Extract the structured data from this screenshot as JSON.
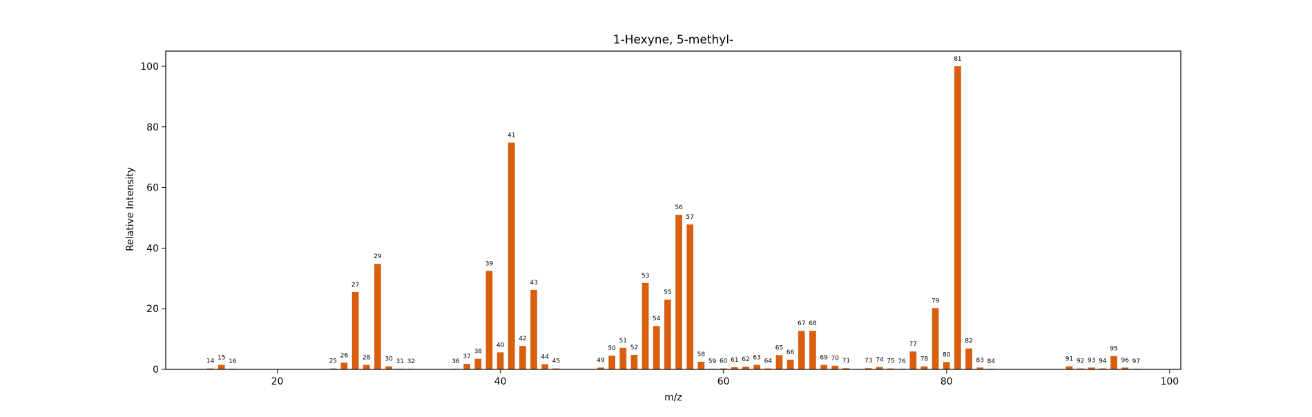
{
  "colors": {
    "bar": "#d95f0e",
    "axis": "#000000",
    "background": "#ffffff"
  },
  "chart_data": {
    "type": "bar",
    "title": "1-Hexyne, 5-methyl-",
    "xlabel": "m/z",
    "ylabel": "Relative Intensity",
    "xlim": [
      10,
      101
    ],
    "ylim": [
      0,
      105
    ],
    "xticks": [
      20,
      40,
      60,
      80,
      100
    ],
    "yticks": [
      0,
      20,
      40,
      60,
      80,
      100
    ],
    "grid": false,
    "legend": "none",
    "x": [
      14,
      15,
      16,
      25,
      26,
      27,
      28,
      29,
      30,
      31,
      32,
      36,
      37,
      38,
      39,
      40,
      41,
      42,
      43,
      44,
      45,
      49,
      50,
      51,
      52,
      53,
      54,
      55,
      56,
      57,
      58,
      59,
      60,
      61,
      62,
      63,
      64,
      65,
      66,
      67,
      68,
      69,
      70,
      71,
      73,
      74,
      75,
      76,
      77,
      78,
      79,
      80,
      81,
      82,
      83,
      84,
      91,
      92,
      93,
      94,
      95,
      96,
      97
    ],
    "values": [
      0.3,
      1.5,
      0.2,
      0.3,
      2.2,
      25.5,
      1.5,
      34.8,
      1.0,
      0.2,
      0.2,
      0.2,
      1.8,
      3.5,
      32.5,
      5.6,
      74.8,
      7.7,
      26.2,
      1.7,
      0.3,
      0.6,
      4.5,
      7.1,
      4.8,
      28.5,
      14.3,
      23.0,
      51.0,
      47.8,
      2.5,
      0.2,
      0.3,
      0.7,
      0.9,
      1.5,
      0.3,
      4.7,
      3.2,
      12.7,
      12.7,
      1.5,
      1.2,
      0.4,
      0.4,
      0.8,
      0.3,
      0.2,
      5.9,
      1.0,
      20.2,
      2.4,
      100.0,
      6.9,
      0.6,
      0.2,
      1.0,
      0.3,
      0.6,
      0.3,
      4.4,
      0.6,
      0.2
    ]
  }
}
